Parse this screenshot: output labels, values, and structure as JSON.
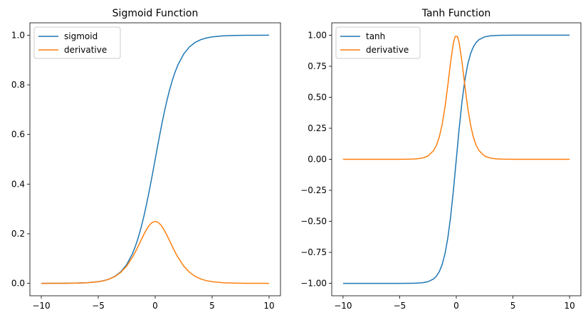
{
  "chart_data": [
    {
      "type": "line",
      "title": "Sigmoid Function",
      "xlabel": "",
      "ylabel": "",
      "xlim": [
        -11,
        11
      ],
      "ylim": [
        -0.05,
        1.05
      ],
      "xticks": [
        -10,
        -5,
        0,
        5,
        10
      ],
      "xtick_labels": [
        "−10",
        "−5",
        "0",
        "5",
        "10"
      ],
      "yticks": [
        0.0,
        0.2,
        0.4,
        0.6,
        0.8,
        1.0
      ],
      "ytick_labels": [
        "0.0",
        "0.2",
        "0.4",
        "0.6",
        "0.8",
        "1.0"
      ],
      "grid": false,
      "legend": "upper-left",
      "series": [
        {
          "name": "sigmoid",
          "color": "#1f77b4",
          "x": [
            -10,
            -9,
            -8,
            -7,
            -6,
            -5,
            -4.5,
            -4,
            -3.5,
            -3,
            -2.5,
            -2,
            -1.75,
            -1.5,
            -1.25,
            -1,
            -0.75,
            -0.5,
            -0.25,
            0,
            0.25,
            0.5,
            0.75,
            1,
            1.25,
            1.5,
            1.75,
            2,
            2.5,
            3,
            3.5,
            4,
            4.5,
            5,
            6,
            7,
            8,
            9,
            10
          ],
          "y": [
            0.0,
            0.0001,
            0.0003,
            0.0009,
            0.0025,
            0.0067,
            0.011,
            0.018,
            0.0293,
            0.0474,
            0.0759,
            0.1192,
            0.148,
            0.1824,
            0.2227,
            0.2689,
            0.3208,
            0.3775,
            0.4378,
            0.5,
            0.5622,
            0.6225,
            0.6792,
            0.7311,
            0.7773,
            0.8176,
            0.852,
            0.8808,
            0.9241,
            0.9526,
            0.9707,
            0.982,
            0.989,
            0.9933,
            0.9975,
            0.9991,
            0.9997,
            0.9999,
            1.0
          ]
        },
        {
          "name": "derivative",
          "color": "#ff7f0e",
          "x": [
            -10,
            -9,
            -8,
            -7,
            -6,
            -5,
            -4.5,
            -4,
            -3.5,
            -3,
            -2.5,
            -2,
            -1.75,
            -1.5,
            -1.25,
            -1,
            -0.75,
            -0.5,
            -0.25,
            0,
            0.25,
            0.5,
            0.75,
            1,
            1.25,
            1.5,
            1.75,
            2,
            2.5,
            3,
            3.5,
            4,
            4.5,
            5,
            6,
            7,
            8,
            9,
            10
          ],
          "y": [
            0.0,
            0.0001,
            0.0003,
            0.0009,
            0.0025,
            0.0066,
            0.0109,
            0.0177,
            0.0285,
            0.0452,
            0.0701,
            0.105,
            0.1261,
            0.1491,
            0.1731,
            0.1966,
            0.2179,
            0.235,
            0.2461,
            0.25,
            0.2461,
            0.235,
            0.2179,
            0.1966,
            0.1731,
            0.1491,
            0.1261,
            0.105,
            0.0701,
            0.0452,
            0.0285,
            0.0177,
            0.0109,
            0.0066,
            0.0025,
            0.0009,
            0.0003,
            0.0001,
            0.0
          ]
        }
      ]
    },
    {
      "type": "line",
      "title": "Tanh Function",
      "xlabel": "",
      "ylabel": "",
      "xlim": [
        -11,
        11
      ],
      "ylim": [
        -1.1,
        1.1
      ],
      "xticks": [
        -10,
        -5,
        0,
        5,
        10
      ],
      "xtick_labels": [
        "−10",
        "−5",
        "0",
        "5",
        "10"
      ],
      "yticks": [
        -1.0,
        -0.75,
        -0.5,
        -0.25,
        0.0,
        0.25,
        0.5,
        0.75,
        1.0
      ],
      "ytick_labels": [
        "−1.00",
        "−0.75",
        "−0.50",
        "−0.25",
        "0.00",
        "0.25",
        "0.50",
        "0.75",
        "1.00"
      ],
      "grid": false,
      "legend": "upper-left",
      "series": [
        {
          "name": "tanh",
          "color": "#1f77b4",
          "x": [
            -10,
            -8,
            -6,
            -5,
            -4,
            -3.5,
            -3,
            -2.5,
            -2,
            -1.75,
            -1.5,
            -1.25,
            -1,
            -0.75,
            -0.5,
            -0.25,
            0,
            0.25,
            0.5,
            0.75,
            1,
            1.25,
            1.5,
            1.75,
            2,
            2.5,
            3,
            3.5,
            4,
            5,
            6,
            8,
            10
          ],
          "y": [
            -1.0,
            -1.0,
            -1.0,
            -0.9999,
            -0.9993,
            -0.9982,
            -0.9951,
            -0.9866,
            -0.964,
            -0.9414,
            -0.9051,
            -0.8483,
            -0.7616,
            -0.6351,
            -0.4621,
            -0.2449,
            0.0,
            0.2449,
            0.4621,
            0.6351,
            0.7616,
            0.8483,
            0.9051,
            0.9414,
            0.964,
            0.9866,
            0.9951,
            0.9982,
            0.9993,
            0.9999,
            1.0,
            1.0,
            1.0
          ]
        },
        {
          "name": "derivative",
          "color": "#ff7f0e",
          "x": [
            -10,
            -8,
            -6,
            -5,
            -4,
            -3.5,
            -3,
            -2.5,
            -2,
            -1.75,
            -1.5,
            -1.25,
            -1,
            -0.75,
            -0.5,
            -0.25,
            -0.1,
            0.1,
            0.25,
            0.5,
            0.75,
            1,
            1.25,
            1.5,
            1.75,
            2,
            2.5,
            3,
            3.5,
            4,
            5,
            6,
            8,
            10
          ],
          "y": [
            0.0,
            0.0,
            0.0,
            0.0002,
            0.0013,
            0.0036,
            0.0099,
            0.0266,
            0.0707,
            0.1137,
            0.1807,
            0.2804,
            0.42,
            0.5966,
            0.7864,
            0.94,
            0.99,
            0.99,
            0.94,
            0.7864,
            0.5966,
            0.42,
            0.2804,
            0.1807,
            0.1137,
            0.0707,
            0.0266,
            0.0099,
            0.0036,
            0.0013,
            0.0002,
            0.0,
            0.0,
            0.0
          ]
        }
      ]
    }
  ]
}
